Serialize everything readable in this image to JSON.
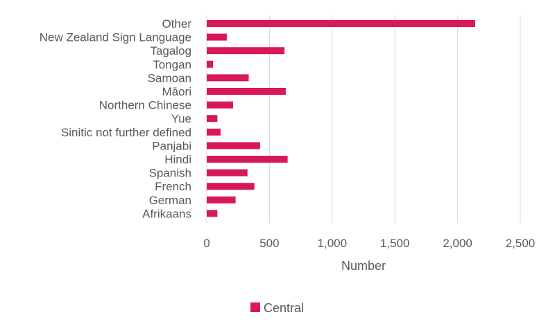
{
  "chart_data": {
    "type": "bar",
    "orientation": "horizontal",
    "title": "",
    "xlabel": "Number",
    "ylabel": "",
    "xlim": [
      0,
      2500
    ],
    "xticks": [
      0,
      500,
      1000,
      1500,
      2000,
      2500
    ],
    "xtick_labels": [
      "0",
      "500",
      "1,000",
      "1,500",
      "2,000",
      "2,500"
    ],
    "grid": "vertical",
    "legend_position": "bottom",
    "categories": [
      "Other",
      "New Zealand Sign Language",
      "Tagalog",
      "Tongan",
      "Samoan",
      "Māori",
      "Northern Chinese",
      "Yue",
      "Sinitic not further defined",
      "Panjabi",
      "Hindi",
      "Spanish",
      "French",
      "German",
      "Afrikaans"
    ],
    "series": [
      {
        "name": "Central",
        "color": "#d8185a",
        "values": [
          2140,
          160,
          620,
          50,
          335,
          630,
          210,
          85,
          110,
          425,
          645,
          325,
          380,
          230,
          85
        ]
      }
    ]
  }
}
